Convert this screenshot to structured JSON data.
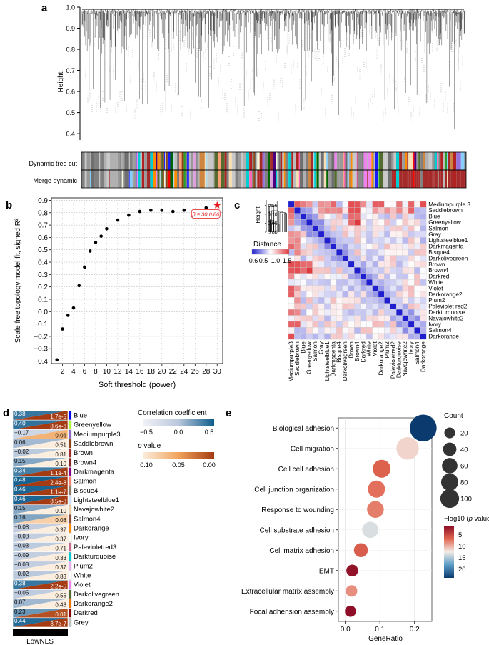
{
  "panels": {
    "a": "a",
    "b": "b",
    "c": "c",
    "d": "d",
    "e": "e"
  },
  "panel_a": {
    "ylabel": "Height",
    "y_ticks": [
      "1.0",
      "0.9",
      "0.8",
      "0.7",
      "0.6",
      "0.5",
      "0.4"
    ],
    "y_values": [
      1.0,
      0.9,
      0.8,
      0.7,
      0.6,
      0.5,
      0.4
    ],
    "ylim": [
      0.37,
      1.0
    ],
    "track_labels": [
      "Dynamic tree cut",
      "Merge dynamic"
    ],
    "module_palette": [
      "#808080",
      "#9a9a9a",
      "#bdbdbd",
      "#1a1aff",
      "#2a9d2a",
      "#8b4513",
      "#cd853f",
      "#ffd700",
      "#ff69b4",
      "#00ced1",
      "#ff0000",
      "#9370db",
      "#006400",
      "#ff8c00",
      "#f5deb3",
      "#4b0082",
      "#a52a2a",
      "#87cefa",
      "#ffa07a",
      "#556b2f",
      "#dda0dd",
      "#b22222",
      "#fafad2",
      "#ee82ee",
      "#add8e6"
    ]
  },
  "chart_data": [
    {
      "type": "scatter",
      "panel": "b",
      "xlabel": "Soft threshold (power)",
      "ylabel": "Scale free topology model fit, signed R²",
      "x": [
        1,
        2,
        3,
        4,
        5,
        6,
        7,
        8,
        9,
        10,
        12,
        14,
        16,
        18,
        20,
        22,
        24,
        26,
        28,
        30
      ],
      "y": [
        -0.39,
        -0.14,
        -0.03,
        0.03,
        0.21,
        0.36,
        0.49,
        0.56,
        0.61,
        0.67,
        0.74,
        0.78,
        0.81,
        0.82,
        0.82,
        0.81,
        0.82,
        0.82,
        0.84,
        0.86
      ],
      "highlight": {
        "x": 30,
        "y": 0.86,
        "label": "β = 30,0.86",
        "color": "#e41a1c"
      },
      "xlim": [
        0,
        31
      ],
      "ylim": [
        -0.42,
        0.92
      ],
      "x_ticks": [
        2,
        4,
        6,
        8,
        10,
        12,
        14,
        16,
        18,
        20,
        22,
        24,
        26,
        28,
        30
      ],
      "y_ticks": [
        -0.4,
        -0.3,
        -0.2,
        -0.1,
        0.0,
        0.1,
        0.2,
        0.3,
        0.4,
        0.5,
        0.6,
        0.7,
        0.8,
        0.9
      ],
      "y_tick_labels": [
        "−0.4",
        "−0.3",
        "−0.2",
        "−0.1",
        "0.0",
        "0.1",
        "0.2",
        "0.3",
        "0.4",
        "0.5",
        "0.6",
        "0.7",
        "0.8",
        "0.9"
      ],
      "grid": true
    },
    {
      "type": "heatmap",
      "panel": "c",
      "modules": [
        "Mediumpurple 3",
        "Saddlebrown",
        "Blue",
        "Greenyellow",
        "Salmon",
        "Gray",
        "Lightsteelblue1",
        "Darkmagenta",
        "Bisque4",
        "Darkolivegreen",
        "Brown",
        "Brown4",
        "Darkred",
        "White",
        "Violet",
        "Darkorange2",
        "Plum2",
        "Paleviolet red2",
        "Darkturquoise",
        "Navajowhite2",
        "Ivory",
        "Salmon4",
        "Darkorange"
      ],
      "row_labels": [
        "Mediumpurple 3",
        "Saddlebrown",
        "Blue",
        "Greenyellow",
        "Salmon",
        "Gray",
        "Lightsteelblue1",
        "Darkmagenta",
        "Bisque4",
        "Darkolivegreen",
        "Brown",
        "Brown4",
        "Darkred",
        "White",
        "Violet",
        "Darkorange2",
        "Plum2",
        "Paleviolet red2",
        "Darkturquoise",
        "Navajowhite2",
        "Ivory",
        "Salmon4",
        "Darkorange"
      ],
      "col_labels": [
        "Mediumpurple3",
        "Saddlebrown",
        "Blue",
        "Greenyellow",
        "Salmon",
        "Gray",
        "Lightsteelblue1",
        "Darkmagenta",
        "Bisque4",
        "Darkolivegreen",
        "Brown",
        "Brown4",
        "Darkred",
        "White",
        "Violet",
        "Darkorange2",
        "Plum2",
        "Palevioletred2",
        "Darkturquoise",
        "Navajowhite2",
        "Ivory",
        "Salmon4",
        "Darkorange"
      ],
      "legend_title": "Distance",
      "legend_ticks": [
        "0.6",
        "0.5",
        "1.0",
        "1.5"
      ],
      "dendro_label": "Height",
      "dendro_ticks": [
        "0.15",
        "0.10",
        "0.05",
        "0.00"
      ],
      "dendro_values": [
        0.15,
        0.1,
        0.05,
        0.0
      ]
    },
    {
      "type": "table",
      "panel": "d",
      "modules": [
        "Blue",
        "Greenyellow",
        "Mediumpurple3",
        "Saddlebrown",
        "Brown",
        "Brown4",
        "Darkmagenta",
        "Salmon",
        "Bisque4",
        "Lightsteelblue1",
        "Navajowhite2",
        "Salmon4",
        "Darkorange",
        "Ivory",
        "Palevioletred3",
        "Darkturquoise",
        "Plum2",
        "White",
        "Violet",
        "Darkolivegreen",
        "Darkorange2",
        "Darkred",
        "Grey"
      ],
      "module_colors": [
        "#0000ff",
        "#adff2f",
        "#8968cd",
        "#8b4513",
        "#a52a2a",
        "#8b2323",
        "#8b008b",
        "#fa8072",
        "#8b7d6b",
        "#cae1ff",
        "#eecfa1",
        "#8b4c39",
        "#ff8c00",
        "#fffff0",
        "#cd6889",
        "#00ced1",
        "#eeaeee",
        "#ffffff",
        "#ee82ee",
        "#556b2f",
        "#ee7600",
        "#8b0000",
        "#bebebe"
      ],
      "correlation": [
        "0.38",
        "0.40",
        "−0.17",
        "0.06",
        "−0.02",
        "0.15",
        "0.34",
        "0.48",
        "0.46",
        "0.46",
        "0.15",
        "0.16",
        "−0.08",
        "−0.08",
        "−0.03",
        "−0.09",
        "−0.08",
        "−0.02",
        "0.38",
        "−0.05",
        "0.07",
        "0.23",
        "0.44"
      ],
      "correlation_values": [
        0.38,
        0.4,
        -0.17,
        0.06,
        -0.02,
        0.15,
        0.34,
        0.48,
        0.46,
        0.46,
        0.15,
        0.16,
        -0.08,
        -0.08,
        -0.03,
        -0.09,
        -0.08,
        -0.02,
        0.38,
        -0.05,
        0.07,
        0.23,
        0.44
      ],
      "p_value": [
        "1.7e-5",
        "8.6e-6",
        "0.06",
        "0.51",
        "0.81",
        "0.10",
        "1.1e-4",
        "2.4e-8",
        "1.1e-7",
        "8.5e-8",
        "0.10",
        "0.08",
        "0.37",
        "0.37",
        "0.71",
        "0.33",
        "0.37",
        "0.83",
        "2.2e-5",
        "0.55",
        "0.43",
        "0.01",
        "3.7e-7"
      ],
      "p_numeric": [
        1.7e-05,
        8.6e-06,
        0.06,
        0.51,
        0.81,
        0.1,
        0.00011,
        2.4e-08,
        1.1e-07,
        8.5e-08,
        0.1,
        0.08,
        0.37,
        0.37,
        0.71,
        0.33,
        0.37,
        0.83,
        2.2e-05,
        0.55,
        0.43,
        0.01,
        3.7e-07
      ],
      "column_label": "LowNLS",
      "corr_legend_title": "Correlation coefficient",
      "corr_legend_ticks": [
        "−0.5",
        "0.0",
        "0.5"
      ],
      "p_legend_title_prefix": "p",
      "p_legend_title_suffix": " value",
      "p_legend_ticks": [
        "0.10",
        "0.05",
        "0.00"
      ]
    },
    {
      "type": "scatter",
      "panel": "e",
      "xlabel": "GeneRatio",
      "terms": [
        "Biological adhesion",
        "Cell migration",
        "Cell cell adhesion",
        "Cell junction organization",
        "Response to wounding",
        "Cell substrate adhesion",
        "Cell matrix adhesion",
        "EMT",
        "Extracellular matrix assembly",
        "Focal adhension assembly"
      ],
      "gene_ratio": [
        0.225,
        0.18,
        0.105,
        0.09,
        0.087,
        0.072,
        0.045,
        0.02,
        0.018,
        0.015
      ],
      "count": [
        120,
        75,
        40,
        35,
        33,
        30,
        18,
        10,
        9,
        8
      ],
      "neg_log10_p": [
        24,
        11.5,
        6.5,
        7.2,
        7.8,
        13.5,
        6.2,
        1.5,
        8.5,
        1.2
      ],
      "xlim": [
        -0.02,
        0.25
      ],
      "x_ticks": [
        0.0,
        0.1,
        0.2
      ],
      "x_tick_labels": [
        "0.0",
        "0.1",
        "0.2"
      ],
      "count_legend_title": "Count",
      "count_legend": [
        20,
        40,
        60,
        80,
        100
      ],
      "p_legend_title_prefix": "−log10 (",
      "p_legend_title_italic": "p",
      "p_legend_title_suffix": " value)",
      "p_legend_ticks": [
        5,
        10,
        15,
        20
      ]
    }
  ]
}
